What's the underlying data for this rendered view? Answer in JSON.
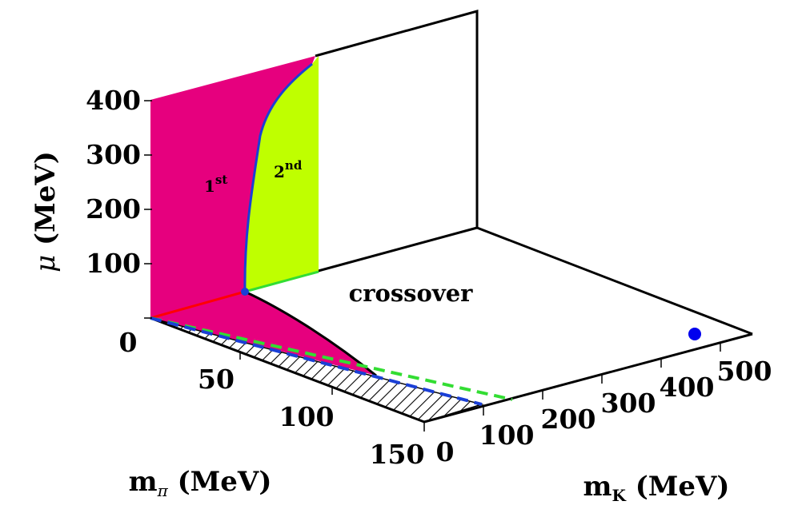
{
  "chart_data": {
    "type": "3d-phase-diagram",
    "axes": {
      "mu": {
        "label_symbol": "μ",
        "label_unit": "(MeV)",
        "ticks": [
          100,
          200,
          300,
          400
        ],
        "range": [
          0,
          400
        ]
      },
      "mpi": {
        "label_symbol": "m",
        "label_sub": "π",
        "label_unit": "(MeV)",
        "ticks": [
          0,
          50,
          100,
          150
        ],
        "range": [
          0,
          150
        ]
      },
      "mk": {
        "label_symbol": "m",
        "label_sub": "K",
        "label_unit": "(MeV)",
        "ticks": [
          0,
          100,
          200,
          300,
          400,
          500
        ],
        "range": [
          0,
          500
        ]
      }
    },
    "regions": [
      {
        "name": "first-order",
        "label_main": "1",
        "label_sup": "st",
        "color": "#e6007e"
      },
      {
        "name": "second-order",
        "label_main": "2",
        "label_sup": "nd",
        "color": "#bfff00"
      },
      {
        "name": "crossover",
        "label": "crossover"
      }
    ],
    "physical_point_color": "#0000ee",
    "line_colors": {
      "boundary": "#1a3fd6",
      "first_order_line": "#ff0000",
      "second_order_line": "#33dd33",
      "dashed_green": "#33dd33",
      "dashed_blue": "#1a3fd6"
    }
  }
}
